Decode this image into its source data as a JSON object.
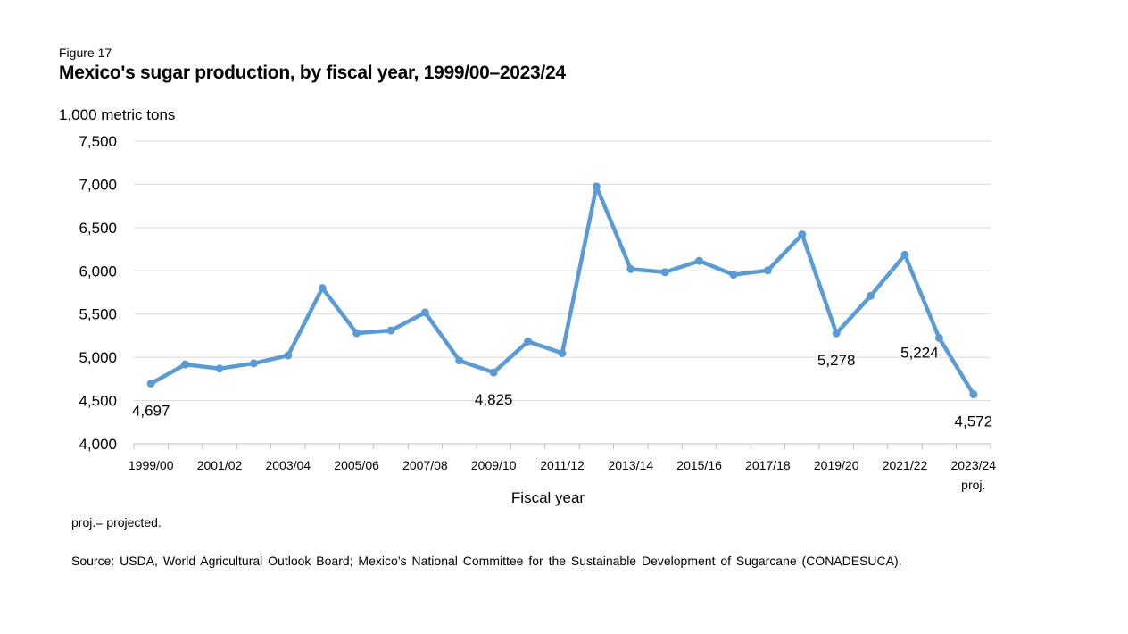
{
  "figure_label": "Figure 17",
  "chart_data": {
    "type": "line",
    "title": "Mexico's sugar production, by fiscal year, 1999/00–2023/24",
    "ylabel": "1,000 metric tons",
    "xlabel": "Fiscal year",
    "ylim": [
      4000,
      7500
    ],
    "yticks": [
      4000,
      4500,
      5000,
      5500,
      6000,
      6500,
      7000,
      7500
    ],
    "ytick_labels": [
      "4,000",
      "4,500",
      "5,000",
      "5,500",
      "6,000",
      "6,500",
      "7,000",
      "7,500"
    ],
    "grid": true,
    "categories": [
      "1999/00",
      "2000/01",
      "2001/02",
      "2002/03",
      "2003/04",
      "2004/05",
      "2005/06",
      "2006/07",
      "2007/08",
      "2008/09",
      "2009/10",
      "2010/11",
      "2011/12",
      "2012/13",
      "2013/14",
      "2014/15",
      "2015/16",
      "2016/17",
      "2017/18",
      "2018/19",
      "2019/20",
      "2020/21",
      "2021/22",
      "2022/23",
      "2023/24"
    ],
    "x_tick_labels": [
      "1999/00",
      "2001/02",
      "2003/04",
      "2005/06",
      "2007/08",
      "2009/10",
      "2011/12",
      "2013/14",
      "2015/16",
      "2017/18",
      "2019/20",
      "2021/22",
      "2023/24"
    ],
    "x_tick_sublabel": "proj.",
    "series": [
      {
        "name": "Sugar production",
        "color": "#5b9bd5",
        "values": [
          4697,
          4917,
          4870,
          4930,
          5022,
          5800,
          5280,
          5310,
          5518,
          4962,
          4825,
          5184,
          5048,
          6975,
          6020,
          5985,
          6115,
          5955,
          6005,
          6420,
          5278,
          5710,
          6185,
          5224,
          4572
        ]
      }
    ],
    "annotations": [
      {
        "index": 0,
        "text": "4,697",
        "placement": "below"
      },
      {
        "index": 10,
        "text": "4,825",
        "placement": "below"
      },
      {
        "index": 20,
        "text": "5,278",
        "placement": "below"
      },
      {
        "index": 23,
        "text": "5,224",
        "placement": "left"
      },
      {
        "index": 24,
        "text": "4,572",
        "placement": "below"
      }
    ]
  },
  "notes": {
    "projected": "proj.= projected.",
    "source": "Source: USDA, World Agricultural Outlook Board; Mexico’s National Committee for the Sustainable Development of Sugarcane (CONADESUCA)."
  }
}
